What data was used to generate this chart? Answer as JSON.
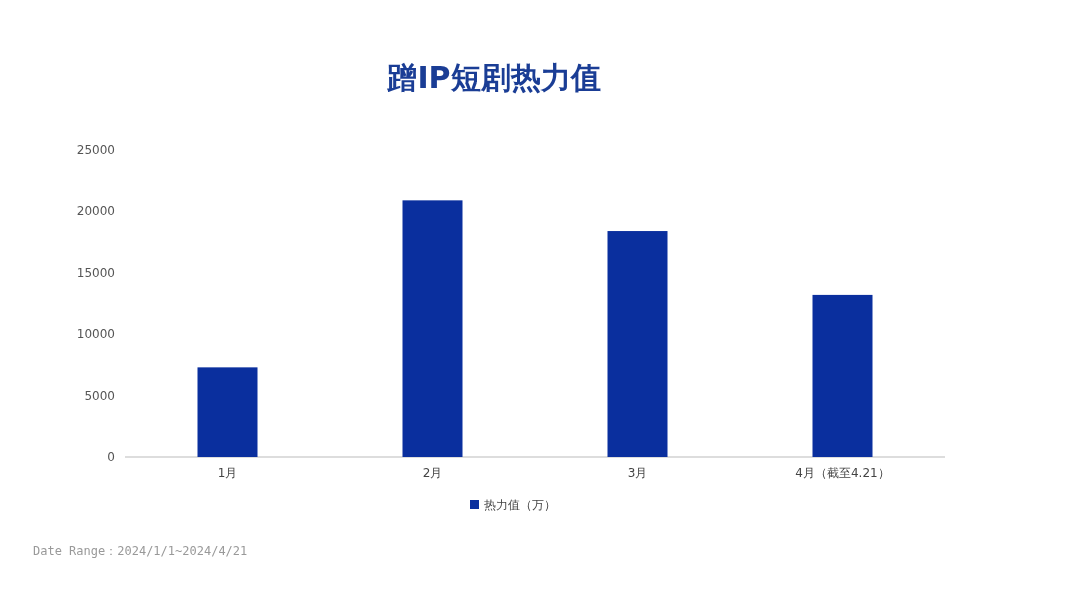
{
  "chart_data": {
    "type": "bar",
    "title": "蹭IP短剧热力值",
    "categories": [
      "1月",
      "2月",
      "3月",
      "4月（截至4.21）"
    ],
    "series": [
      {
        "name": "热力值（万）",
        "color": "#0a2f9e",
        "values": [
          7300,
          20900,
          18400,
          13200
        ]
      }
    ],
    "ylim": [
      0,
      25000
    ],
    "yticks": [
      0,
      5000,
      10000,
      15000,
      20000,
      25000
    ],
    "grid": false,
    "legend": "bottom",
    "annotations": [
      "Date Range：2024/1/1~2024/4/21"
    ]
  }
}
